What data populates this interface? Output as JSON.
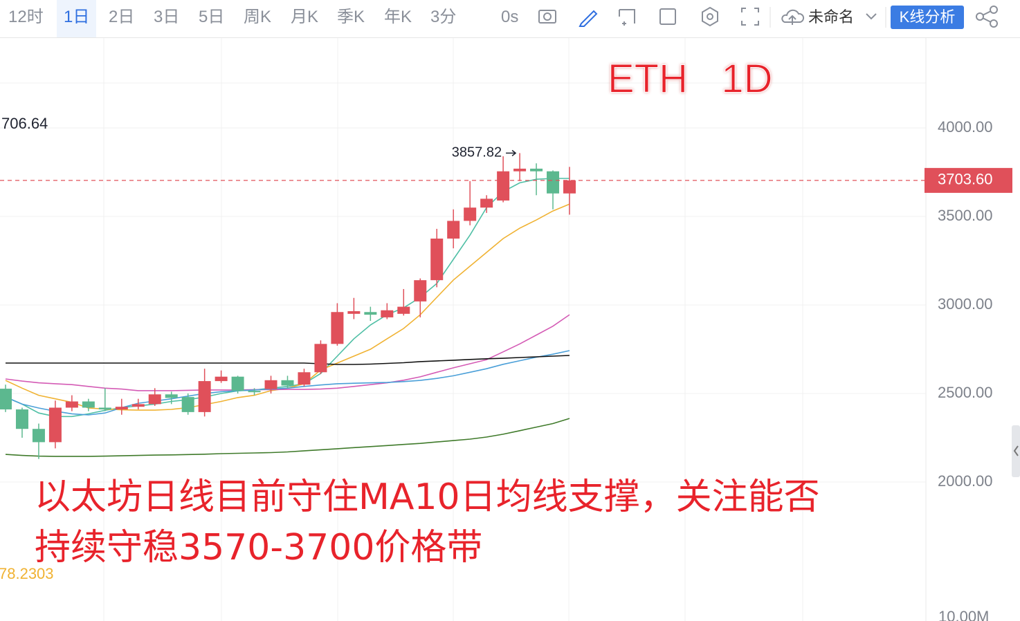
{
  "toolbar": {
    "periods": [
      "12时",
      "1日",
      "2日",
      "3日",
      "5日",
      "周K",
      "月K",
      "季K",
      "年K",
      "3分"
    ],
    "selected": "1日",
    "timer": "0s",
    "layout_name": "未命名",
    "analysis_button": "K线分析"
  },
  "chart_data": {
    "type": "candlestick",
    "title": "ETH   1D",
    "annotation": [
      "以太坊日线目前守住MA10日均线支撑，关注能否",
      "持续守稳3570-3700价格带"
    ],
    "side_labels": [
      "706.64",
      "78.2303",
      "10.00M"
    ],
    "up_color": "#e0505a",
    "down_color": "#5cb88f",
    "open": [
      2527,
      2410,
      2300,
      2225,
      2420,
      2455,
      2420,
      2410,
      2425,
      2440,
      2495,
      2480,
      2395,
      2570,
      2595,
      2515,
      2525,
      2575,
      2550,
      2620,
      2780,
      2950,
      2960,
      2930,
      2950,
      3020,
      3140,
      3375,
      3475,
      3550,
      3590,
      3755,
      3770,
      3755,
      3630
    ],
    "high": [
      2550,
      2420,
      2330,
      2460,
      2490,
      2470,
      2530,
      2470,
      2470,
      2530,
      2510,
      2500,
      2640,
      2630,
      2600,
      2530,
      2600,
      2600,
      2640,
      2800,
      3010,
      3040,
      2990,
      3010,
      3090,
      3150,
      3430,
      3540,
      3700,
      3620,
      3840,
      3857.82,
      3800,
      3760,
      3780
    ],
    "low": [
      2395,
      2250,
      2130,
      2190,
      2400,
      2400,
      2400,
      2380,
      2410,
      2430,
      2440,
      2380,
      2370,
      2560,
      2500,
      2490,
      2500,
      2530,
      2540,
      2610,
      2770,
      2920,
      2910,
      2920,
      2940,
      2930,
      3100,
      3320,
      3450,
      3520,
      3580,
      3700,
      3620,
      3540,
      3510
    ],
    "close": [
      2410,
      2300,
      2225,
      2420,
      2455,
      2420,
      2410,
      2425,
      2440,
      2495,
      2475,
      2395,
      2570,
      2595,
      2515,
      2510,
      2575,
      2545,
      2620,
      2780,
      2960,
      2965,
      2945,
      2970,
      2990,
      3140,
      3375,
      3475,
      3550,
      3600,
      3755,
      3770,
      3755,
      3630,
      3703.6
    ],
    "series": [
      {
        "color": "#4fbfa5",
        "values": [
          2480,
          2440,
          2390,
          2370,
          2370,
          2385,
          2405,
          2420,
          2430,
          2440,
          2455,
          2465,
          2480,
          2500,
          2515,
          2520,
          2530,
          2540,
          2555,
          2613,
          2711,
          2809,
          2887,
          2945,
          2984,
          3043,
          3121,
          3258,
          3395,
          3550,
          3640,
          3690,
          3710,
          3715,
          3715
        ]
      },
      {
        "color": "#f0b232",
        "values": [
          2574,
          2530,
          2490,
          2470,
          2450,
          2418,
          2412,
          2408,
          2406,
          2406,
          2410,
          2420,
          2437,
          2455,
          2477,
          2490,
          2516,
          2530,
          2555,
          2633,
          2672,
          2711,
          2750,
          2809,
          2867,
          2945,
          3043,
          3141,
          3219,
          3297,
          3375,
          3434,
          3480,
          3531,
          3570
        ]
      },
      {
        "color": "#d45bb5",
        "values": [
          2582,
          2570,
          2560,
          2555,
          2550,
          2540,
          2530,
          2525,
          2516,
          2516,
          2516,
          2518,
          2520,
          2520,
          2520,
          2522,
          2522,
          2523,
          2523,
          2525,
          2530,
          2540,
          2550,
          2560,
          2575,
          2594,
          2620,
          2645,
          2668,
          2691,
          2735,
          2780,
          2830,
          2880,
          2945
        ]
      },
      {
        "color": "#4a9fd8",
        "values": [
          2480,
          2440,
          2418,
          2400,
          2385,
          2379,
          2390,
          2420,
          2445,
          2457,
          2470,
          2485,
          2500,
          2510,
          2516,
          2520,
          2525,
          2530,
          2540,
          2548,
          2555,
          2558,
          2560,
          2562,
          2567,
          2574,
          2585,
          2600,
          2620,
          2640,
          2665,
          2685,
          2705,
          2722,
          2742
        ]
      },
      {
        "color": "#111111",
        "values": [
          2672,
          2672,
          2672,
          2672,
          2672,
          2672,
          2672,
          2672,
          2672,
          2672,
          2672,
          2672,
          2672,
          2672,
          2672,
          2672,
          2672,
          2672,
          2672,
          2668,
          2664,
          2664,
          2666,
          2670,
          2674,
          2680,
          2684,
          2688,
          2692,
          2696,
          2699,
          2703,
          2707,
          2711,
          2715
        ]
      },
      {
        "color": "#3f7a2a",
        "values": [
          2156,
          2150,
          2146,
          2145,
          2145,
          2145,
          2146,
          2148,
          2150,
          2152,
          2153,
          2155,
          2157,
          2160,
          2162,
          2164,
          2166,
          2170,
          2176,
          2182,
          2188,
          2194,
          2200,
          2206,
          2212,
          2218,
          2226,
          2234,
          2242,
          2254,
          2270,
          2290,
          2310,
          2330,
          2359
        ]
      }
    ],
    "last_price": {
      "value": 3703.6,
      "label": "3703.60"
    },
    "ylim": [
      1200,
      4500
    ],
    "yticks": [
      {
        "value": 2000,
        "label": "2000.00"
      },
      {
        "value": 2500,
        "label": "2500.00"
      },
      {
        "value": 3000,
        "label": "3000.00"
      },
      {
        "value": 3500,
        "label": "3500.00"
      },
      {
        "value": 4000,
        "label": "4000.00"
      }
    ],
    "grid": true
  }
}
